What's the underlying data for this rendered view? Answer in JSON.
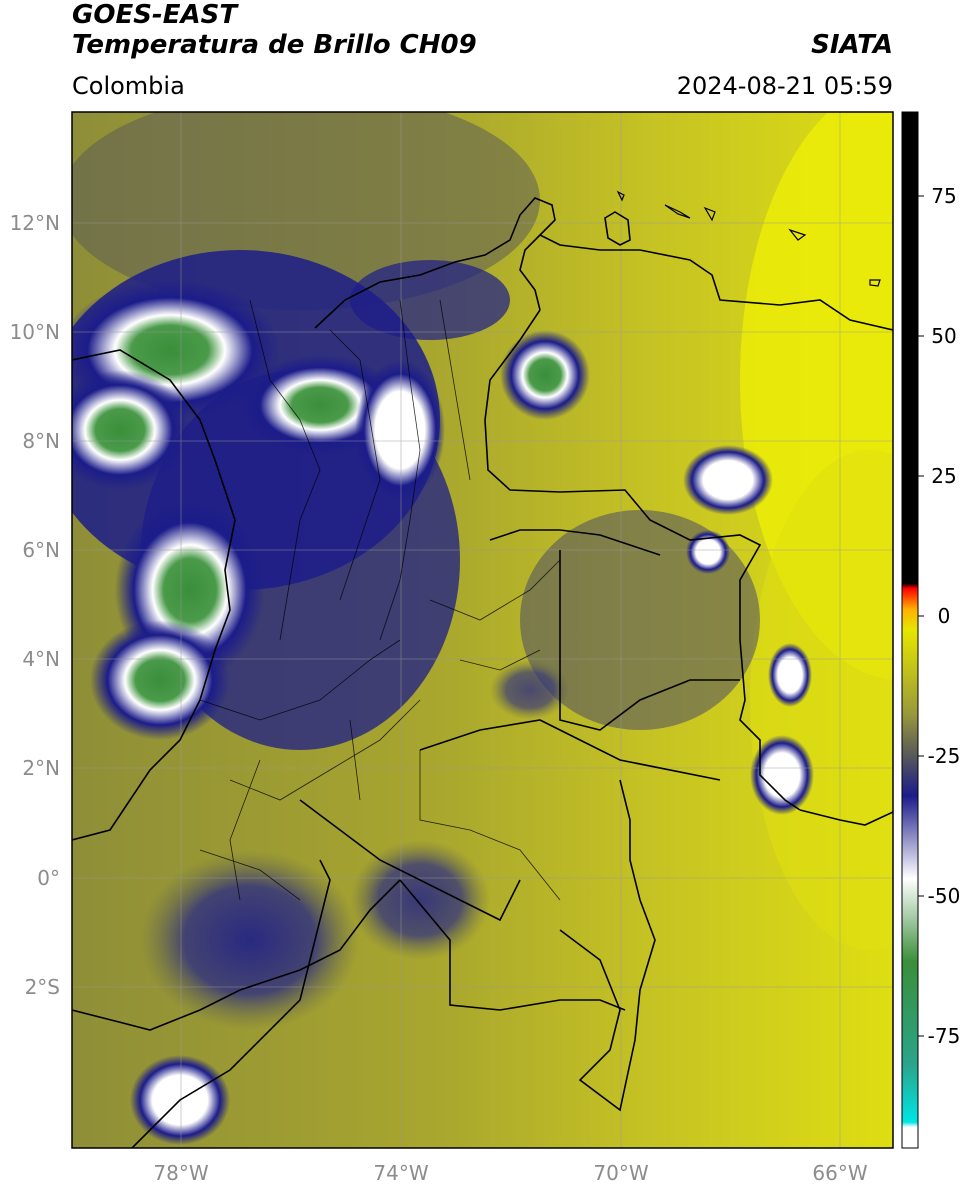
{
  "header": {
    "title_line1": "GOES-EAST",
    "title_line2": "Temperatura de Brillo CH09",
    "organization": "SIATA",
    "region": "Colombia",
    "datetime": "2024-08-21 05:59"
  },
  "map": {
    "lon_ticks": [
      "78°W",
      "74°W",
      "70°W",
      "66°W"
    ],
    "lat_ticks": [
      "12°N",
      "10°N",
      "8°N",
      "6°N",
      "4°N",
      "2°N",
      "0°",
      "2°S"
    ],
    "colors": {
      "warm_yellow": "#c8c41e",
      "olive": "#8f8f34",
      "dark_blue": "#1c1c7a",
      "white": "#ffffff",
      "green": "#3a8f3a",
      "bright_yellow": "#f2f200"
    }
  },
  "colorbar": {
    "tick_labels": [
      "75",
      "50",
      "25",
      "0",
      "-25",
      "-50",
      "-75"
    ],
    "tick_values": [
      75,
      50,
      25,
      0,
      -25,
      -50,
      -75
    ],
    "range": [
      -95,
      90
    ]
  }
}
